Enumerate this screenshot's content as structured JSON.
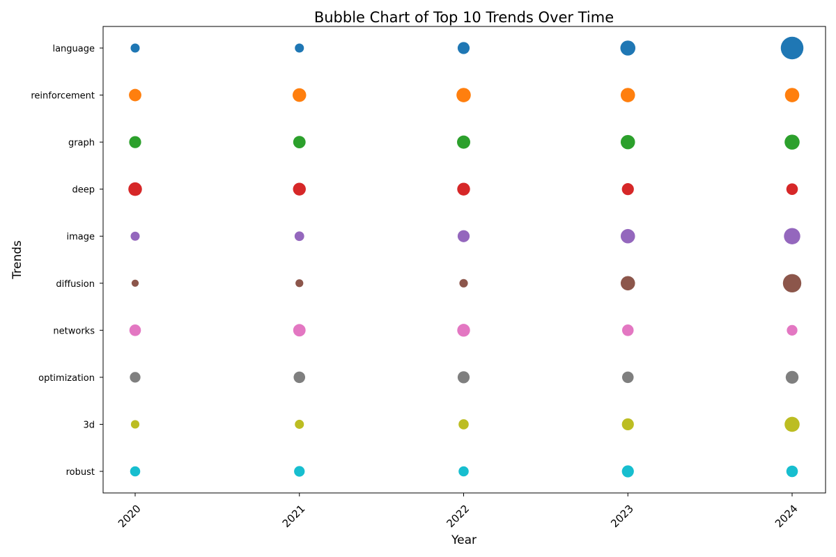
{
  "chart_data": {
    "type": "scatter",
    "title": "Bubble Chart of Top 10 Trends Over Time",
    "xlabel": "Year",
    "ylabel": "Trends",
    "grid": false,
    "x": [
      "2020",
      "2021",
      "2022",
      "2023",
      "2024"
    ],
    "series": [
      {
        "name": "language",
        "color": "#1f77b4",
        "sizes": [
          8,
          8,
          14,
          22,
          50
        ]
      },
      {
        "name": "reinforcement",
        "color": "#ff7f0e",
        "sizes": [
          15,
          18,
          20,
          20,
          20
        ]
      },
      {
        "name": "graph",
        "color": "#2ca02c",
        "sizes": [
          14,
          15,
          17,
          20,
          22
        ]
      },
      {
        "name": "deep",
        "color": "#d62728",
        "sizes": [
          18,
          16,
          16,
          14,
          13
        ]
      },
      {
        "name": "image",
        "color": "#9467bd",
        "sizes": [
          8,
          9,
          14,
          20,
          26
        ]
      },
      {
        "name": "diffusion",
        "color": "#8c564b",
        "sizes": [
          5,
          6,
          7,
          20,
          33
        ]
      },
      {
        "name": "networks",
        "color": "#e377c2",
        "sizes": [
          13,
          15,
          16,
          13,
          11
        ]
      },
      {
        "name": "optimization",
        "color": "#7f7f7f",
        "sizes": [
          11,
          13,
          14,
          13,
          16
        ]
      },
      {
        "name": "3d",
        "color": "#bcbd22",
        "sizes": [
          7,
          8,
          10,
          14,
          22
        ]
      },
      {
        "name": "robust",
        "color": "#17becf",
        "sizes": [
          10,
          11,
          10,
          14,
          13
        ]
      }
    ]
  }
}
